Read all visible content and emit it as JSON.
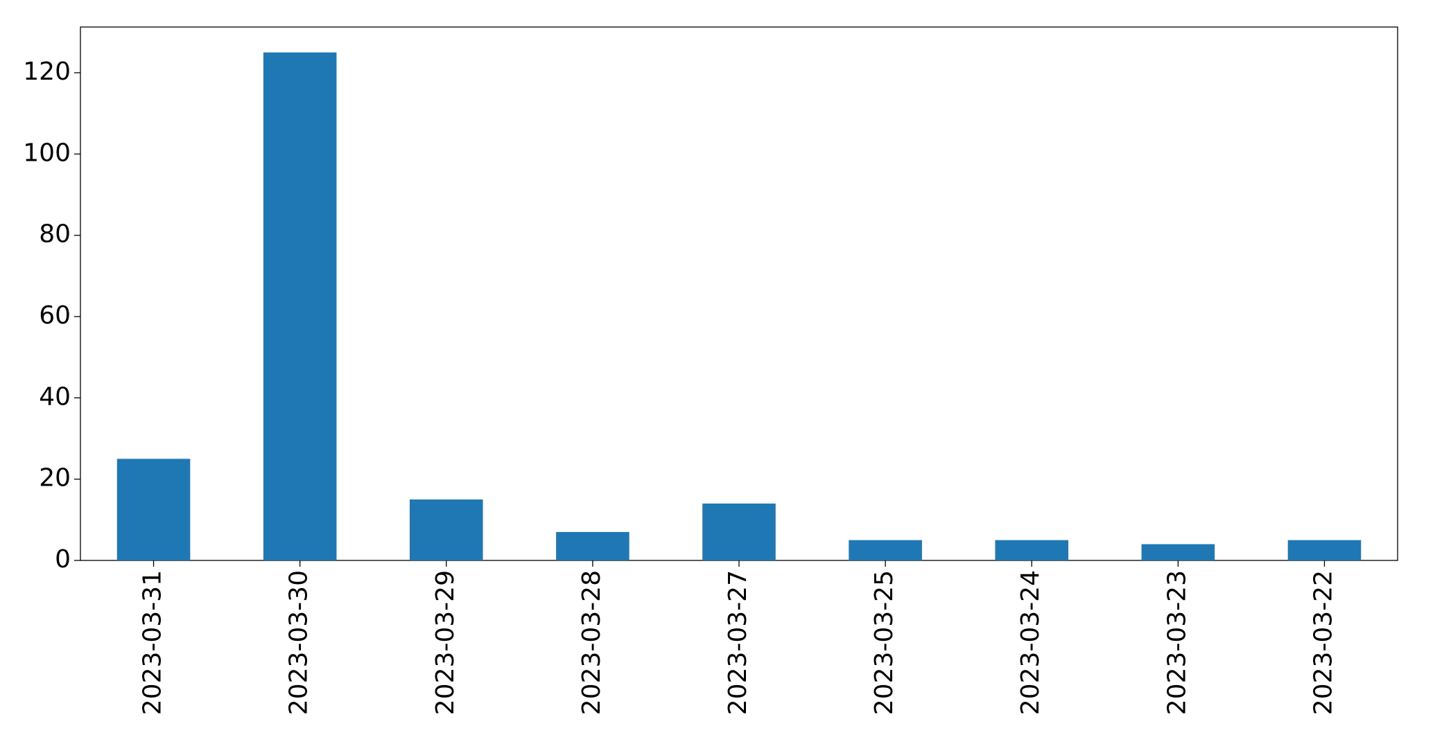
{
  "chart_data": {
    "type": "bar",
    "categories": [
      "2023-03-31",
      "2023-03-30",
      "2023-03-29",
      "2023-03-28",
      "2023-03-27",
      "2023-03-25",
      "2023-03-24",
      "2023-03-23",
      "2023-03-22"
    ],
    "values": [
      25,
      125,
      15,
      7,
      14,
      5,
      5,
      4,
      5
    ],
    "color": "#1f77b4",
    "ylim": [
      0,
      131.25
    ],
    "yticks": [
      0,
      20,
      40,
      60,
      80,
      100,
      120
    ],
    "grid": false
  }
}
